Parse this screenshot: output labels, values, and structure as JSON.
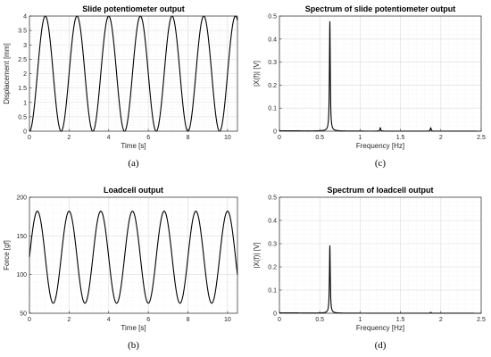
{
  "chart_data": [
    {
      "id": "a",
      "panel_label": "(a)",
      "type": "line",
      "title": "Slide potentiometer output",
      "xlabel": "Time [s]",
      "ylabel": "Displacement [mm]",
      "xlim": [
        0,
        10.5
      ],
      "ylim": [
        0,
        4
      ],
      "xticks": [
        0,
        2,
        4,
        6,
        8,
        10
      ],
      "yticks": [
        0,
        0.5,
        1,
        1.5,
        2,
        2.5,
        3,
        3.5,
        4
      ],
      "xtick_labels": [
        "0",
        "2",
        "4",
        "6",
        "8",
        "10"
      ],
      "ytick_labels": [
        "0",
        "0.5",
        "1",
        "1.5",
        "2",
        "2.5",
        "3",
        "3.5",
        "4"
      ],
      "grid": true,
      "series": [
        {
          "kind": "sine",
          "frequency_hz": 0.625,
          "min": 0,
          "max": 4,
          "phase_start": "min",
          "color": "#000000"
        }
      ]
    },
    {
      "id": "c",
      "panel_label": "(c)",
      "type": "line",
      "title": "Spectrum of slide potentiometer output",
      "xlabel": "Frequency [Hz]",
      "ylabel": "|X(f)| [V]",
      "xlim": [
        0,
        2.5
      ],
      "ylim": [
        0,
        0.5
      ],
      "xticks": [
        0,
        0.5,
        1,
        1.5,
        2,
        2.5
      ],
      "yticks": [
        0,
        0.1,
        0.2,
        0.3,
        0.4,
        0.5
      ],
      "xtick_labels": [
        "0",
        "0.5",
        "1",
        "1.5",
        "2",
        "2.5"
      ],
      "ytick_labels": [
        "0",
        "0.1",
        "0.2",
        "0.3",
        "0.4",
        "0.5"
      ],
      "grid": true,
      "series": [
        {
          "kind": "spectrum",
          "peaks": [
            {
              "f": 0.625,
              "a": 0.475
            },
            {
              "f": 1.25,
              "a": 0.015
            },
            {
              "f": 1.875,
              "a": 0.015
            }
          ],
          "color": "#000000"
        }
      ]
    },
    {
      "id": "b",
      "panel_label": "(b)",
      "type": "line",
      "title": "Loadcell output",
      "xlabel": "Time [s]",
      "ylabel": "Force [gf]",
      "xlim": [
        0,
        10.5
      ],
      "ylim": [
        50,
        200
      ],
      "xticks": [
        0,
        2,
        4,
        6,
        8,
        10
      ],
      "yticks": [
        50,
        100,
        150,
        200
      ],
      "xtick_labels": [
        "0",
        "2",
        "4",
        "6",
        "8",
        "10"
      ],
      "ytick_labels": [
        "50",
        "100",
        "150",
        "200"
      ],
      "grid": true,
      "series": [
        {
          "kind": "sine",
          "frequency_hz": 0.625,
          "min": 63,
          "max": 182,
          "phase_start": "mid-rising",
          "color": "#000000"
        }
      ]
    },
    {
      "id": "d",
      "panel_label": "(d)",
      "type": "line",
      "title": "Spectrum of loadcell output",
      "xlabel": "Frequency [Hz]",
      "ylabel": "|X(f)| [V]",
      "xlim": [
        0,
        2.5
      ],
      "ylim": [
        0,
        0.5
      ],
      "xticks": [
        0,
        0.5,
        1,
        1.5,
        2,
        2.5
      ],
      "yticks": [
        0,
        0.1,
        0.2,
        0.3,
        0.4,
        0.5
      ],
      "xtick_labels": [
        "0",
        "0.5",
        "1",
        "1.5",
        "2",
        "2.5"
      ],
      "ytick_labels": [
        "0",
        "0.1",
        "0.2",
        "0.3",
        "0.4",
        "0.5"
      ],
      "grid": true,
      "series": [
        {
          "kind": "spectrum",
          "peaks": [
            {
              "f": 0.625,
              "a": 0.29
            },
            {
              "f": 1.875,
              "a": 0.004
            }
          ],
          "color": "#000000"
        }
      ]
    }
  ]
}
